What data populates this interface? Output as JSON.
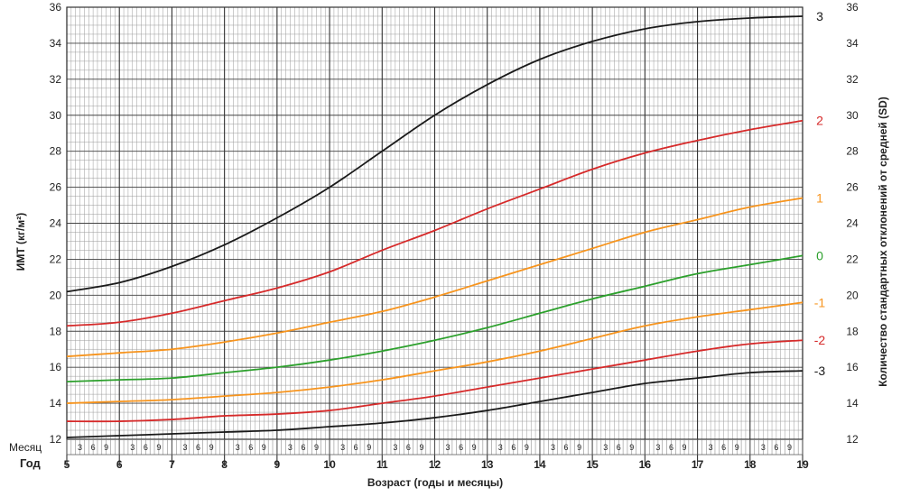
{
  "chart_data": {
    "type": "line",
    "ylabel": "ИМТ (кг/м²)",
    "ylabel_right": "Количество стандартных отклонений от средней (SD)",
    "xlabel": "Возраст (годы и месяцы)",
    "month_row_label": "Месяц",
    "year_row_label": "Год",
    "month_ticks": [
      "3",
      "6",
      "9"
    ],
    "x_years": [
      5,
      6,
      7,
      8,
      9,
      10,
      11,
      12,
      13,
      14,
      15,
      16,
      17,
      18,
      19
    ],
    "xlim": [
      5,
      19
    ],
    "ylim": [
      12,
      36
    ],
    "y_ticks": [
      12,
      14,
      16,
      18,
      20,
      22,
      24,
      26,
      28,
      30,
      32,
      34,
      36
    ],
    "grid": true,
    "series": [
      {
        "name": "3",
        "color": "#1a1a1a",
        "x": [
          5,
          6,
          7,
          8,
          9,
          10,
          11,
          12,
          13,
          14,
          15,
          16,
          17,
          18,
          19
        ],
        "values": [
          20.2,
          20.7,
          21.6,
          22.8,
          24.3,
          26.0,
          28.0,
          30.0,
          31.7,
          33.1,
          34.1,
          34.8,
          35.2,
          35.4,
          35.5
        ]
      },
      {
        "name": "2",
        "color": "#d62a2a",
        "x": [
          5,
          6,
          7,
          8,
          9,
          10,
          11,
          12,
          13,
          14,
          15,
          16,
          17,
          18,
          19
        ],
        "values": [
          18.3,
          18.5,
          19.0,
          19.7,
          20.4,
          21.3,
          22.5,
          23.6,
          24.8,
          25.9,
          27.0,
          27.9,
          28.6,
          29.2,
          29.7
        ]
      },
      {
        "name": "1",
        "color": "#f7941d",
        "x": [
          5,
          6,
          7,
          8,
          9,
          10,
          11,
          12,
          13,
          14,
          15,
          16,
          17,
          18,
          19
        ],
        "values": [
          16.6,
          16.8,
          17.0,
          17.4,
          17.9,
          18.5,
          19.1,
          19.9,
          20.8,
          21.7,
          22.6,
          23.5,
          24.2,
          24.9,
          25.4
        ]
      },
      {
        "name": "0",
        "color": "#2ca02c",
        "x": [
          5,
          6,
          7,
          8,
          9,
          10,
          11,
          12,
          13,
          14,
          15,
          16,
          17,
          18,
          19
        ],
        "values": [
          15.2,
          15.3,
          15.4,
          15.7,
          16.0,
          16.4,
          16.9,
          17.5,
          18.2,
          19.0,
          19.8,
          20.5,
          21.2,
          21.7,
          22.2
        ]
      },
      {
        "name": "-1",
        "color": "#f7941d",
        "x": [
          5,
          6,
          7,
          8,
          9,
          10,
          11,
          12,
          13,
          14,
          15,
          16,
          17,
          18,
          19
        ],
        "values": [
          14.0,
          14.1,
          14.2,
          14.4,
          14.6,
          14.9,
          15.3,
          15.8,
          16.3,
          16.9,
          17.6,
          18.3,
          18.8,
          19.2,
          19.6
        ]
      },
      {
        "name": "-2",
        "color": "#d62a2a",
        "x": [
          5,
          6,
          7,
          8,
          9,
          10,
          11,
          12,
          13,
          14,
          15,
          16,
          17,
          18,
          19
        ],
        "values": [
          13.0,
          13.0,
          13.1,
          13.3,
          13.4,
          13.6,
          14.0,
          14.4,
          14.9,
          15.4,
          15.9,
          16.4,
          16.9,
          17.3,
          17.5
        ]
      },
      {
        "name": "-3",
        "color": "#1a1a1a",
        "x": [
          5,
          6,
          7,
          8,
          9,
          10,
          11,
          12,
          13,
          14,
          15,
          16,
          17,
          18,
          19
        ],
        "values": [
          12.1,
          12.2,
          12.3,
          12.4,
          12.5,
          12.7,
          12.9,
          13.2,
          13.6,
          14.1,
          14.6,
          15.1,
          15.4,
          15.7,
          15.8
        ]
      }
    ]
  }
}
